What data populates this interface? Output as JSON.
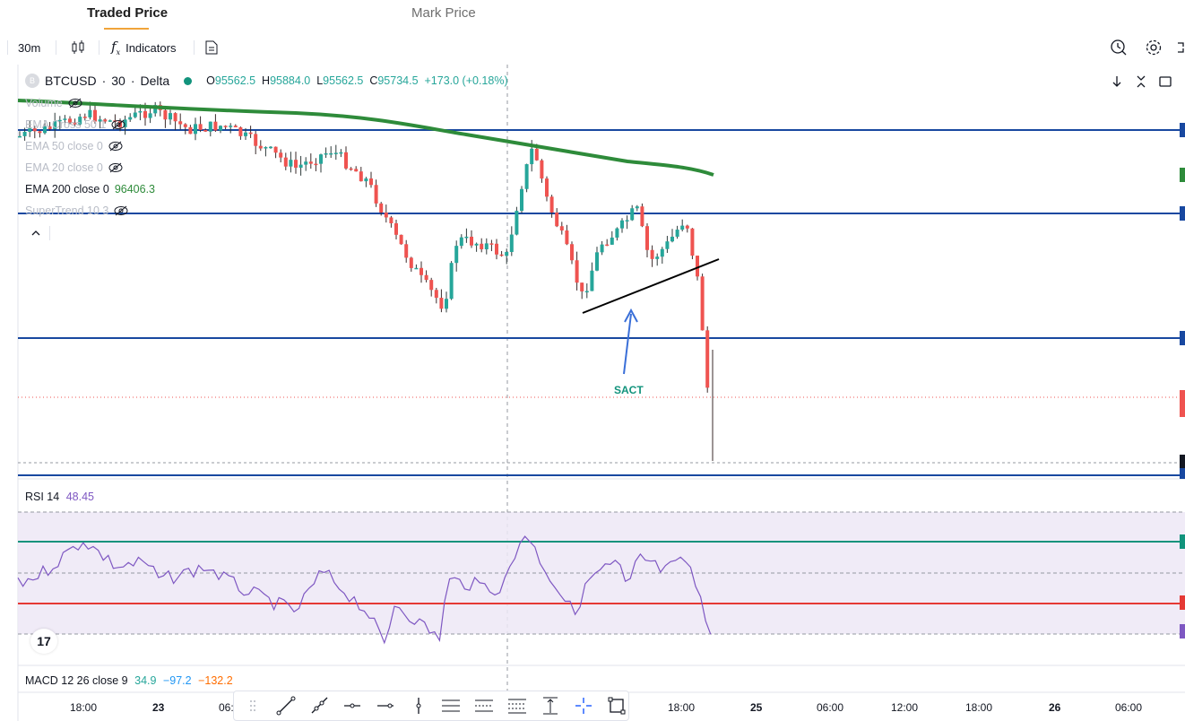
{
  "tabs": [
    {
      "label": "Traded Price",
      "active": true
    },
    {
      "label": "Mark Price",
      "active": false
    }
  ],
  "toolbar": {
    "interval": "30m",
    "indicators_label": "Indicators"
  },
  "symbol": {
    "name": "BTCUSD",
    "interval": "30",
    "exchange": "Delta",
    "open_label": "O",
    "open": "95562.5",
    "high_label": "H",
    "high": "95884.0",
    "low_label": "L",
    "low": "95562.5",
    "close_label": "C",
    "close": "95734.5",
    "change": "+173.0 (+0.18%)"
  },
  "indicators": [
    {
      "label": "Volume",
      "hidden": true
    },
    {
      "label": "EMA Cross 50 1",
      "hidden": true
    },
    {
      "label": "EMA 50 close 0",
      "hidden": true
    },
    {
      "label": "EMA 20 close 0",
      "hidden": true
    },
    {
      "label": "EMA 200 close 0",
      "value": "96406.3",
      "hidden": false
    },
    {
      "label": "SuperTrend 10 3",
      "hidden": true
    }
  ],
  "annotation": {
    "text": "SACT"
  },
  "rsi": {
    "label": "RSI 14",
    "value": "48.45"
  },
  "macd": {
    "label": "MACD 12 26 close 9",
    "v1": "34.9",
    "v2": "−97.2",
    "v3": "−132.2"
  },
  "x_axis": [
    "18:00",
    "23",
    "06:",
    "18:00",
    "25",
    "06:00",
    "12:00",
    "18:00",
    "26",
    "06:00"
  ],
  "colors": {
    "up": "#26a69a",
    "down": "#ef5350",
    "ema200": "#2e8b3a",
    "hline": "#1848a0",
    "rsi": "#7e57c2",
    "rsi_upper": "#12937c",
    "rsi_lower": "#e53935",
    "macd_v2": "#2196f3",
    "macd_v3": "#ff6d00"
  }
}
